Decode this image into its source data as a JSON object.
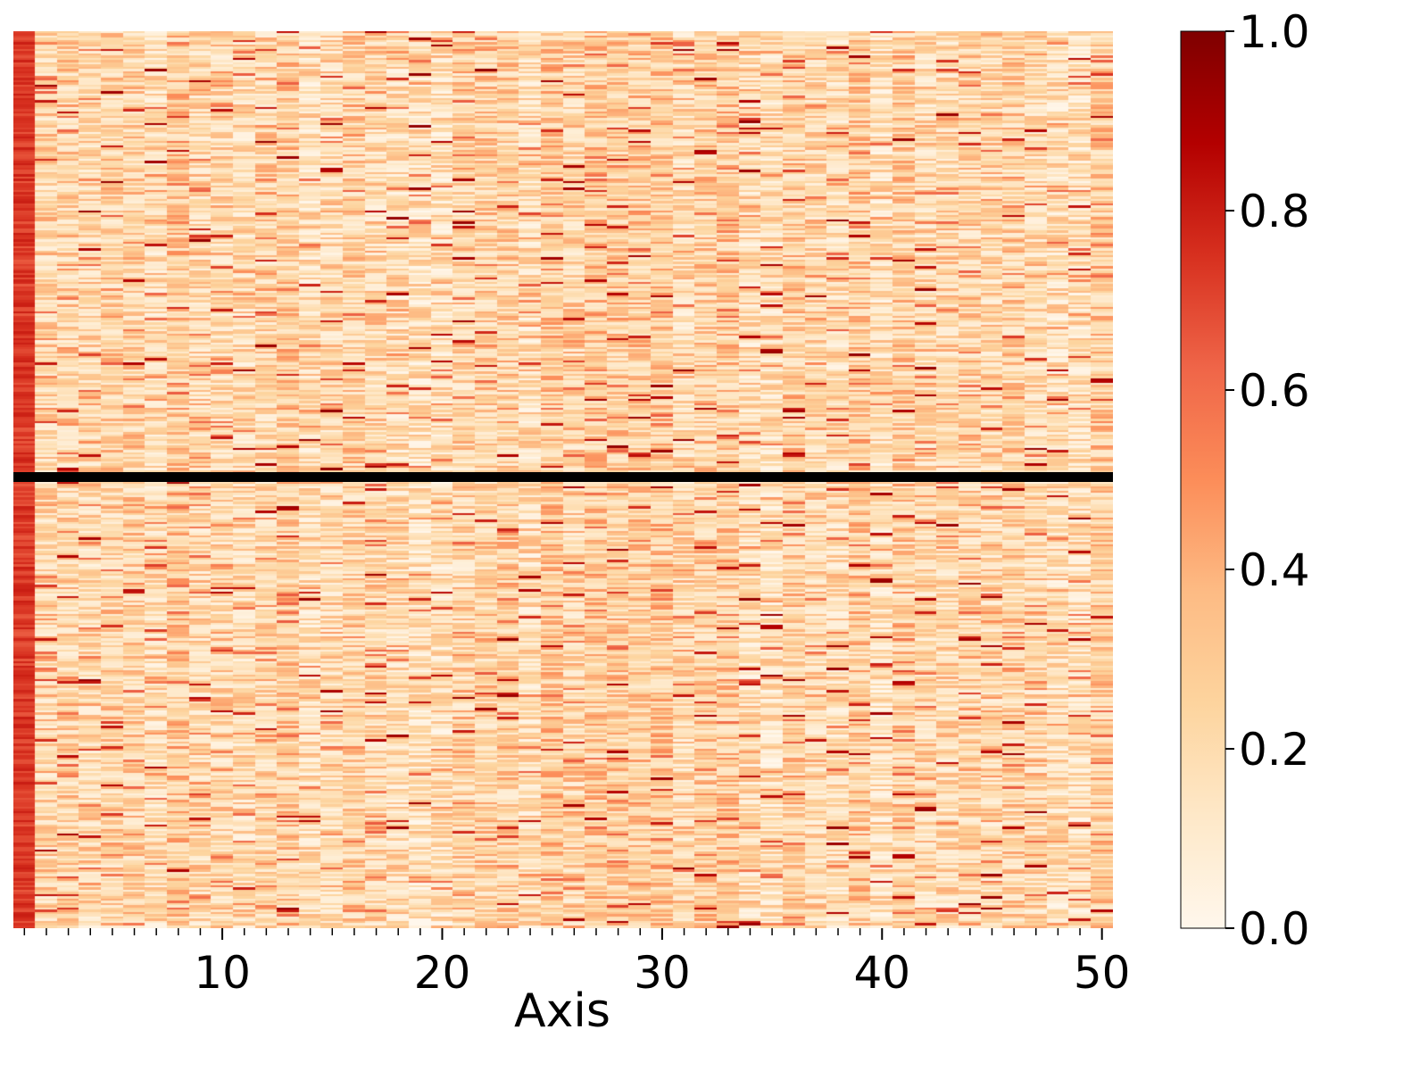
{
  "chart_data": {
    "type": "heatmap",
    "title": "",
    "xlabel": "Axis",
    "ylabel": "",
    "n_columns": 50,
    "n_rows": 400,
    "xlim": [
      0.5,
      50.5
    ],
    "x_ticks_major": [
      10,
      20,
      30,
      40,
      50
    ],
    "x_tick_labels": [
      "10",
      "20",
      "30",
      "40",
      "50"
    ],
    "x_ticks_minor_every": 1,
    "y_ticks": [],
    "first_column_value_range": [
      0.65,
      0.8
    ],
    "other_columns_typical_range": [
      0.05,
      0.45
    ],
    "occasional_peak_values": [
      0.7,
      0.95
    ],
    "separator_line": {
      "orientation": "horizontal",
      "position_fraction": 0.5,
      "color": "#000000"
    },
    "colorbar": {
      "colormap": "OrRd",
      "vmin": 0.0,
      "vmax": 1.0,
      "ticks": [
        0.0,
        0.2,
        0.4,
        0.6,
        0.8,
        1.0
      ],
      "tick_labels": [
        "0.0",
        "0.2",
        "0.4",
        "0.6",
        "0.8",
        "1.0"
      ]
    },
    "grid": false,
    "legend": "none"
  }
}
